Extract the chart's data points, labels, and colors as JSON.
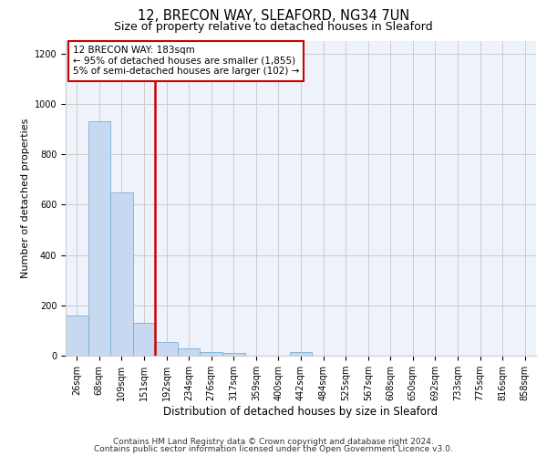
{
  "title": "12, BRECON WAY, SLEAFORD, NG34 7UN",
  "subtitle": "Size of property relative to detached houses in Sleaford",
  "xlabel": "Distribution of detached houses by size in Sleaford",
  "ylabel": "Number of detached properties",
  "footnote1": "Contains HM Land Registry data © Crown copyright and database right 2024.",
  "footnote2": "Contains public sector information licensed under the Open Government Licence v3.0.",
  "bin_labels": [
    "26sqm",
    "68sqm",
    "109sqm",
    "151sqm",
    "192sqm",
    "234sqm",
    "276sqm",
    "317sqm",
    "359sqm",
    "400sqm",
    "442sqm",
    "484sqm",
    "525sqm",
    "567sqm",
    "608sqm",
    "650sqm",
    "692sqm",
    "733sqm",
    "775sqm",
    "816sqm",
    "858sqm"
  ],
  "bar_values": [
    160,
    930,
    650,
    130,
    55,
    30,
    15,
    10,
    0,
    0,
    15,
    0,
    0,
    0,
    0,
    0,
    0,
    0,
    0,
    0,
    0
  ],
  "bar_color": "#c6d9f0",
  "bar_edgecolor": "#7ab0d4",
  "vline_x_index": 4,
  "vline_color": "#cc0000",
  "annotation_text": "12 BRECON WAY: 183sqm\n← 95% of detached houses are smaller (1,855)\n5% of semi-detached houses are larger (102) →",
  "annotation_box_color": "#cc0000",
  "ylim": [
    0,
    1250
  ],
  "yticks": [
    0,
    200,
    400,
    600,
    800,
    1000,
    1200
  ],
  "bg_color": "#eef2fb",
  "grid_color": "#cccccc",
  "title_fontsize": 10.5,
  "subtitle_fontsize": 9,
  "ylabel_fontsize": 8,
  "xlabel_fontsize": 8.5,
  "tick_fontsize": 7,
  "annotation_fontsize": 7.5,
  "footnote_fontsize": 6.5
}
